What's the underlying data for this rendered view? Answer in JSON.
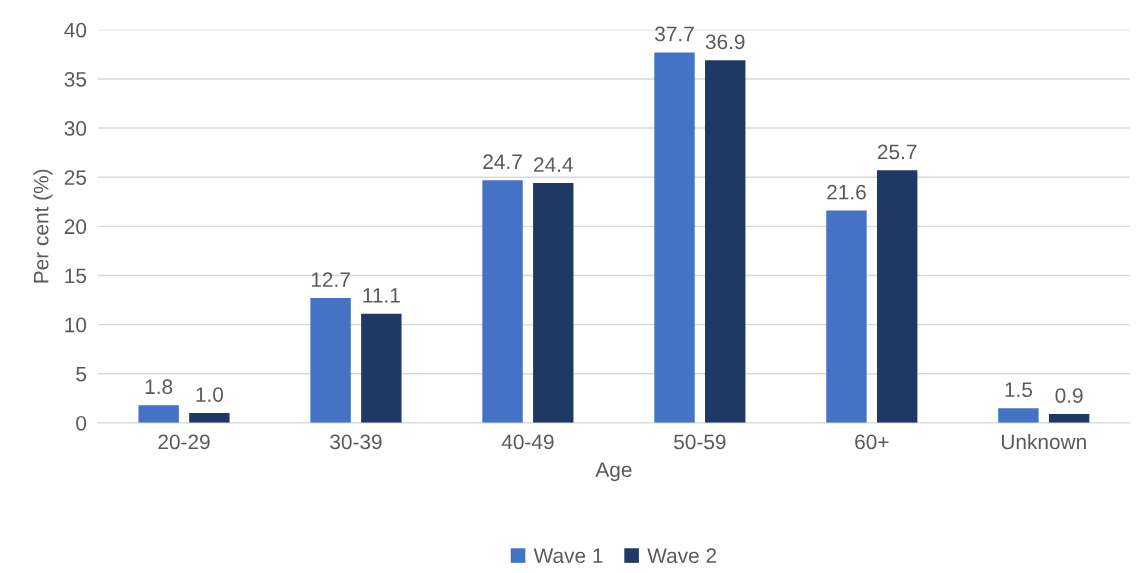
{
  "chart_data": {
    "type": "bar",
    "xlabel": "Age",
    "ylabel": "Per cent (%)",
    "categories": [
      "20-29",
      "30-39",
      "40-49",
      "50-59",
      "60+",
      "Unknown"
    ],
    "series": [
      {
        "name": "Wave 1",
        "color": "#4472c4",
        "values": [
          1.8,
          12.7,
          24.7,
          37.7,
          21.6,
          1.5
        ],
        "value_labels": [
          "1.8",
          "12.7",
          "24.7",
          "37.7",
          "21.6",
          "1.5"
        ]
      },
      {
        "name": "Wave 2",
        "color": "#203864",
        "values": [
          1.0,
          11.1,
          24.4,
          36.9,
          25.7,
          0.9
        ],
        "value_labels": [
          "1.0",
          "11.1",
          "24.4",
          "36.9",
          "25.7",
          "0.9"
        ]
      }
    ],
    "ylim": [
      0,
      40
    ],
    "yticks": [
      0,
      5,
      10,
      15,
      20,
      25,
      30,
      35,
      40
    ],
    "grid": "y",
    "legend": "bottom"
  }
}
